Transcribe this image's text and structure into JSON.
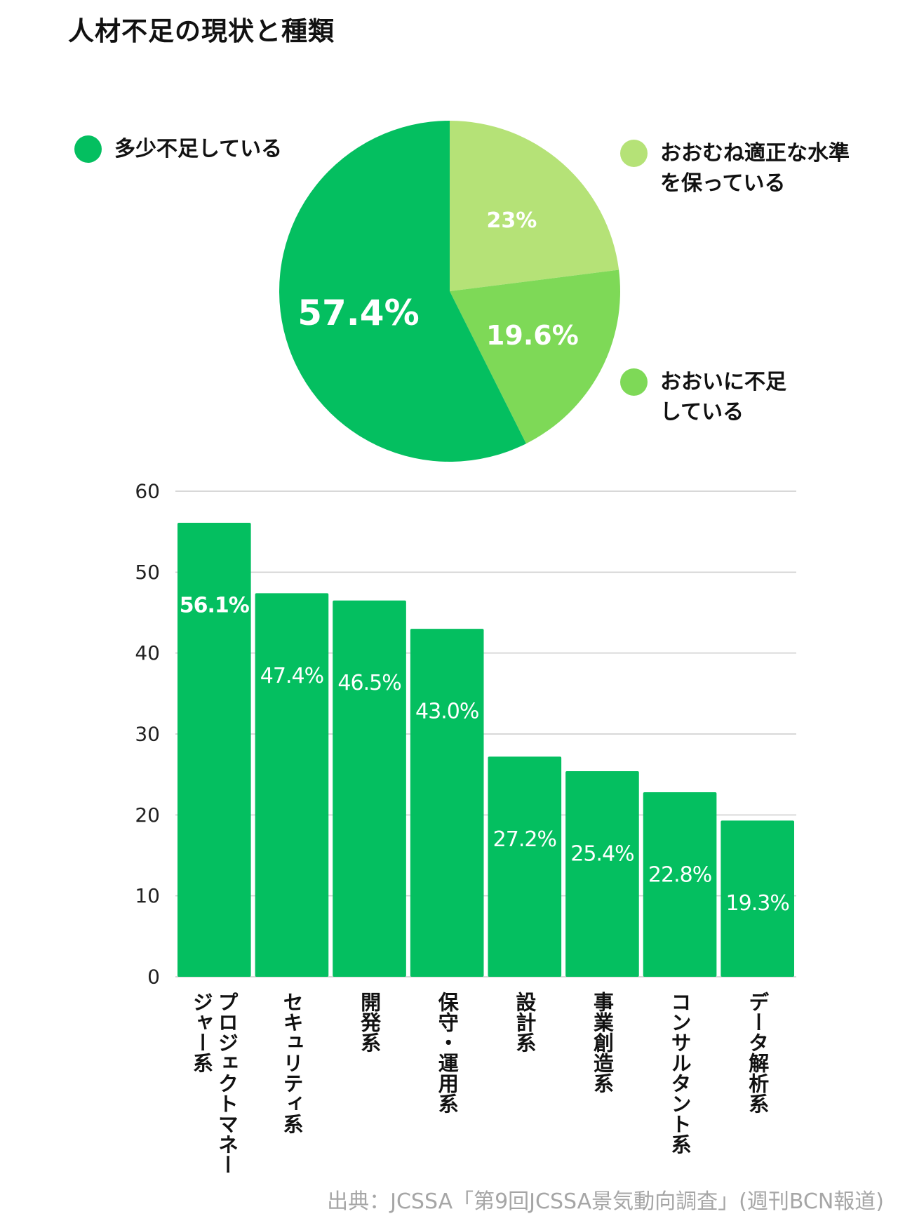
{
  "title": "人材不足の現状と種類",
  "source": "出典：JCSSA「第9回JCSSA景気動向調査」(週刊BCN報道)",
  "colors": {
    "dark": "#04bf60",
    "mid": "#7ed957",
    "light": "#b5e277",
    "grid": "#cccccc",
    "source": "#a6a6a6"
  },
  "chart_data": [
    {
      "type": "pie",
      "slices": [
        {
          "name": "おおむね適正な水準を保っている",
          "value": 23,
          "label": "23%",
          "color": "#b5e277"
        },
        {
          "name": "おおいに不足している",
          "value": 19.6,
          "label": "19.6%",
          "color": "#7ed957"
        },
        {
          "name": "多少不足している",
          "value": 57.4,
          "label": "57.4%",
          "color": "#04bf60"
        }
      ],
      "legend": [
        {
          "label": "多少不足している",
          "color": "#04bf60"
        },
        {
          "label": "おおむね適正な水準を保っている",
          "color": "#b5e277"
        },
        {
          "label": "おおいに不足している",
          "color": "#7ed957"
        }
      ]
    },
    {
      "type": "bar",
      "categories": [
        "プロジェクトマネージャー系",
        "セキュリティ系",
        "開発系",
        "保守・運用系",
        "設計系",
        "事業創造系",
        "コンサルタント系",
        "データ解析系"
      ],
      "values": [
        56.1,
        47.4,
        46.5,
        43.0,
        27.2,
        25.4,
        22.8,
        19.3
      ],
      "labels": [
        "56.1%",
        "47.4%",
        "46.5%",
        "43.0%",
        "27.2%",
        "25.4%",
        "22.8%",
        "19.3%"
      ],
      "ylim": [
        0,
        60
      ],
      "yticks": [
        0,
        10,
        20,
        30,
        40,
        50,
        60
      ],
      "grid": true,
      "color": "#04bf60"
    }
  ]
}
